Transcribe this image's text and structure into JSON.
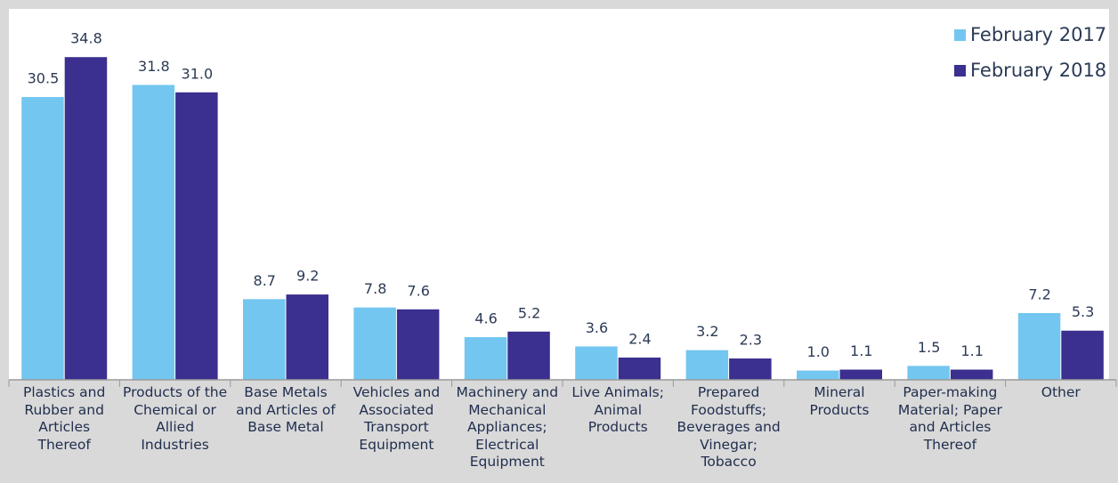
{
  "chart_data": {
    "type": "bar",
    "categories": [
      "Plastics and Rubber and Articles Thereof",
      "Products of the Chemical or Allied Industries",
      "Base Metals and Articles of Base Metal",
      "Vehicles and Associated Transport Equipment",
      "Machinery and Mechanical Appliances; Electrical Equipment",
      "Live Animals; Animal Products",
      "Prepared Foodstuffs; Beverages and Vinegar; Tobacco",
      "Mineral Products",
      "Paper-making Material; Paper and Articles Thereof",
      "Other"
    ],
    "series": [
      {
        "name": "February 2017",
        "color": "#73c6f0",
        "values": [
          30.5,
          31.8,
          8.7,
          7.8,
          4.6,
          3.6,
          3.2,
          1.0,
          1.5,
          7.2
        ],
        "value_labels": [
          "30.5",
          "31.8",
          "8.7",
          "7.8",
          "4.6",
          "3.6",
          "3.2",
          "1.0",
          "1.5",
          "7.2"
        ]
      },
      {
        "name": "February 2018",
        "color": "#3b2f8f",
        "values": [
          34.8,
          31.0,
          9.2,
          7.6,
          5.2,
          2.4,
          2.3,
          1.1,
          1.1,
          5.3
        ],
        "value_labels": [
          "34.8",
          "31.0",
          "9.2",
          "7.6",
          "5.2",
          "2.4",
          "2.3",
          "1.1",
          "1.1",
          "5.3"
        ]
      }
    ],
    "ylim": [
      0,
      40
    ],
    "legend": "top-right"
  }
}
